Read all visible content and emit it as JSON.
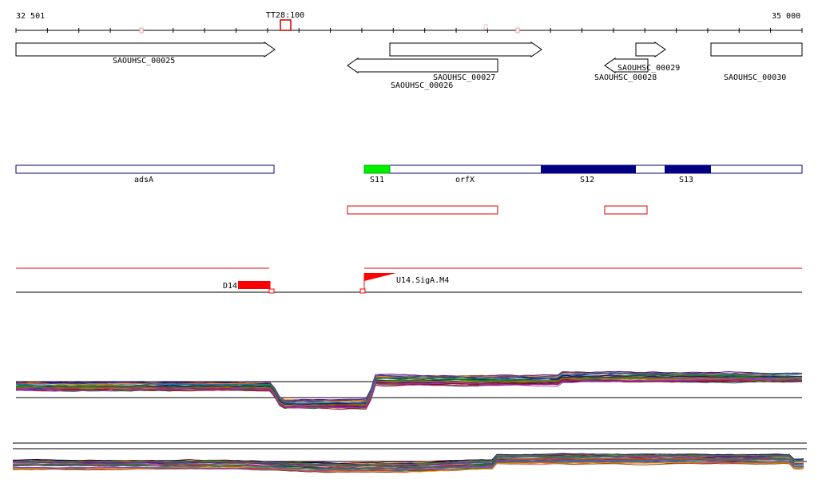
{
  "browser": {
    "range_start_label": "32 501",
    "range_end_label": "35 000",
    "marker_label": "TT28:100"
  },
  "genes": [
    {
      "name": "SAOUHSC_00025",
      "direction": "forward"
    },
    {
      "name": "SAOUHSC_00026",
      "direction": "reverse"
    },
    {
      "name": "SAOUHSC_00027",
      "direction": "forward"
    },
    {
      "name": "SAOUHSC_00028",
      "direction": "reverse"
    },
    {
      "name": "SAOUHSC_00029",
      "direction": "forward"
    },
    {
      "name": "SAOUHSC_00030",
      "direction": "forward"
    }
  ],
  "features": [
    {
      "name": "adsA"
    },
    {
      "name": "S11"
    },
    {
      "name": "orfX"
    },
    {
      "name": "S12"
    },
    {
      "name": "S13"
    }
  ],
  "signals": {
    "left": "D14",
    "right": "U14.SigA.M4"
  },
  "colors": {
    "gene_outline": "#000000",
    "feature_outline": "#000080",
    "feature_green": "#00ee00",
    "feature_navy": "#000080",
    "region_red": "#dd0000",
    "signal_red": "#ff0000"
  }
}
